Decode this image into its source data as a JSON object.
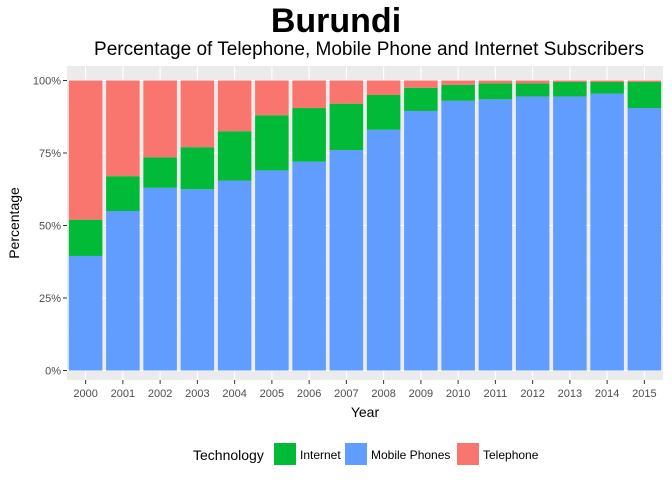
{
  "chart_data": {
    "type": "bar",
    "stacked": true,
    "title": "Burundi",
    "subtitle": "Percentage of Telephone, Mobile Phone and Internet Subscribers",
    "xlabel": "Year",
    "ylabel": "Percentage",
    "ylim": [
      0,
      100
    ],
    "y_ticks": [
      "0%",
      "25%",
      "50%",
      "75%",
      "100%"
    ],
    "categories": [
      "2000",
      "2001",
      "2002",
      "2003",
      "2004",
      "2005",
      "2006",
      "2007",
      "2008",
      "2009",
      "2010",
      "2011",
      "2012",
      "2013",
      "2014",
      "2015"
    ],
    "series": [
      {
        "name": "Mobile Phones",
        "color": "#619cff",
        "values": [
          39.5,
          55,
          63,
          62.5,
          65.5,
          69,
          72,
          76,
          83,
          89.5,
          93,
          93.5,
          94.5,
          94.5,
          95.5,
          90.5
        ]
      },
      {
        "name": "Internet",
        "color": "#00ba38",
        "values": [
          12.5,
          12,
          10.5,
          14.5,
          17,
          19,
          18.5,
          16,
          12,
          8,
          5.5,
          5.5,
          4.5,
          5,
          4,
          9
        ]
      },
      {
        "name": "Telephone",
        "color": "#f8766d",
        "values": [
          48,
          33,
          26.5,
          23,
          17.5,
          12,
          9.5,
          8,
          5,
          2.5,
          1.5,
          1,
          1,
          0.5,
          0.5,
          0.5
        ]
      }
    ],
    "legend": {
      "title": "Technology",
      "position": "bottom",
      "items": [
        {
          "label": "Internet",
          "color": "#00ba38"
        },
        {
          "label": "Mobile Phones",
          "color": "#619cff"
        },
        {
          "label": "Telephone",
          "color": "#f8766d"
        }
      ]
    },
    "grid": true,
    "panel_background": "#ebebeb"
  }
}
